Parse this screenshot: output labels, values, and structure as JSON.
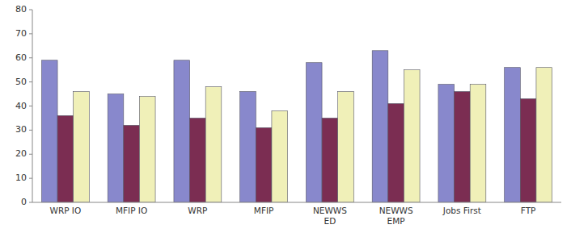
{
  "chart_data": {
    "type": "bar",
    "categories": [
      "WRP IO",
      "MFIP IO",
      "WRP",
      "MFIP",
      "NEWWS\nED",
      "NEWWS\nEMP",
      "Jobs First",
      "FTP"
    ],
    "series": [
      {
        "color": "#8888cc",
        "values": [
          59,
          45,
          59,
          46,
          58,
          63,
          49,
          56
        ]
      },
      {
        "color": "#7b2d52",
        "values": [
          36,
          32,
          35,
          31,
          35,
          41,
          46,
          43
        ]
      },
      {
        "color": "#f0f0b8",
        "values": [
          46,
          44,
          48,
          38,
          46,
          55,
          49,
          56
        ]
      }
    ],
    "ylim": [
      0,
      80
    ],
    "yticks": [
      0,
      10,
      20,
      30,
      40,
      50,
      60,
      70,
      80
    ],
    "grid": false
  }
}
